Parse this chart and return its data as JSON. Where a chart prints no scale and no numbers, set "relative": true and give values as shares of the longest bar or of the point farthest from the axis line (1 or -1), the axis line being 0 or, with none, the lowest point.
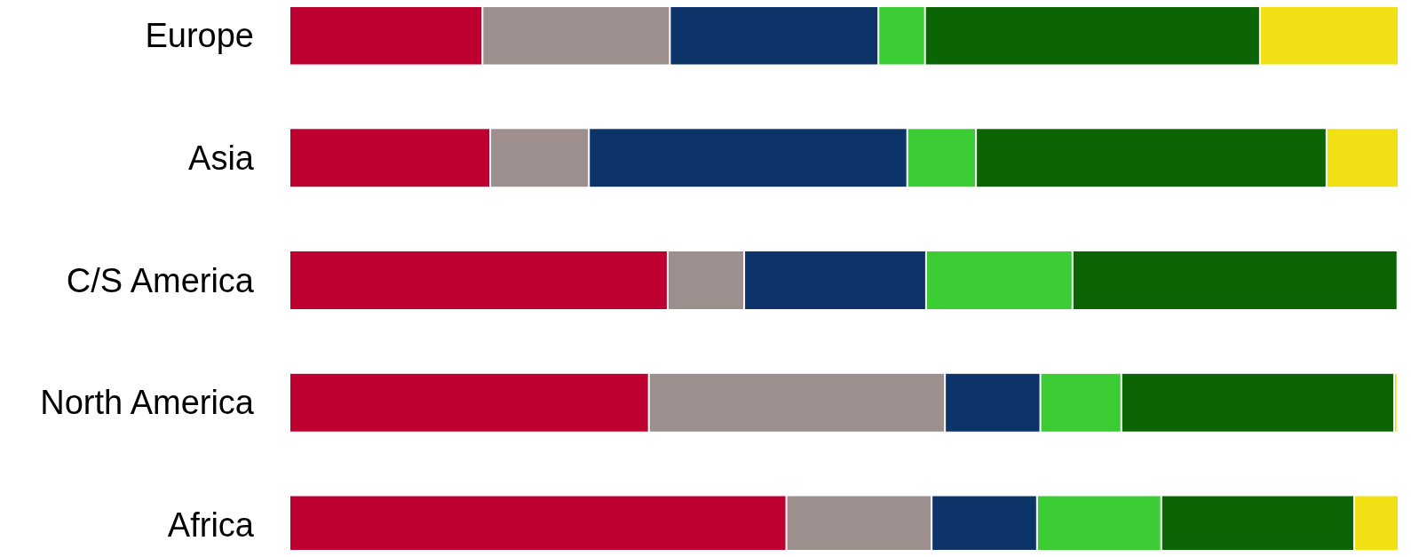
{
  "chart_data": {
    "type": "bar",
    "orientation": "horizontal",
    "stacked": true,
    "relative": true,
    "categories": [
      "Europe",
      "Asia",
      "C/S America",
      "North America",
      "Africa"
    ],
    "series": [
      {
        "color": "#be0030",
        "values": [
          0.174,
          0.181,
          0.341,
          0.324,
          0.448
        ]
      },
      {
        "color": "#9c8f8e",
        "values": [
          0.169,
          0.089,
          0.069,
          0.267,
          0.131
        ]
      },
      {
        "color": "#0c3468",
        "values": [
          0.188,
          0.287,
          0.164,
          0.086,
          0.095
        ]
      },
      {
        "color": "#3ccd35",
        "values": [
          0.042,
          0.062,
          0.132,
          0.073,
          0.112
        ]
      },
      {
        "color": "#0b6505",
        "values": [
          0.302,
          0.316,
          0.293,
          0.246,
          0.174
        ]
      },
      {
        "color": "#f0e014",
        "values": [
          0.125,
          0.065,
          0,
          0.003,
          0.04
        ]
      }
    ]
  }
}
